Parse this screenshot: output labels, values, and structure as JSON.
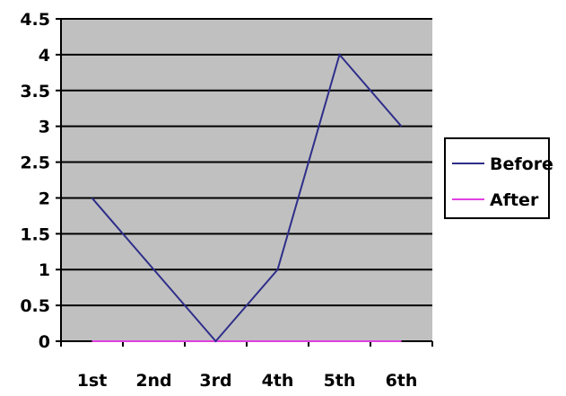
{
  "chart_data": {
    "type": "line",
    "categories": [
      "1st",
      "2nd",
      "3rd",
      "4th",
      "5th",
      "6th"
    ],
    "yticks": [
      "0",
      "0.5",
      "1",
      "1.5",
      "2",
      "2.5",
      "3",
      "3.5",
      "4",
      "4.5"
    ],
    "ylim": [
      0,
      4.5
    ],
    "grid": true,
    "legend_position": "right",
    "plot_background": "#c0c0c0",
    "series": [
      {
        "name": "Before",
        "values": [
          2,
          1,
          0,
          1,
          4,
          3
        ],
        "color": "#2e2e8a"
      },
      {
        "name": "After",
        "values": [
          0,
          0,
          0,
          0,
          0,
          0
        ],
        "color": "#e040e0"
      }
    ]
  }
}
